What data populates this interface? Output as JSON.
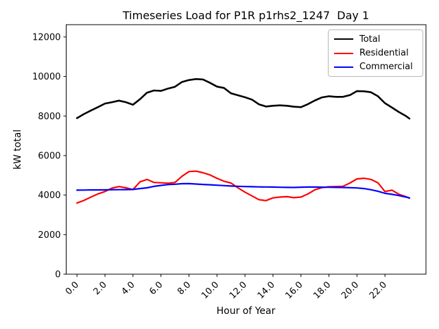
{
  "chart_data": {
    "type": "line",
    "title": "Timeseries Load for P1R p1rhs2_1247  Day 1",
    "xlabel": "Hour of Year",
    "ylabel": "kW total",
    "xlim": [
      -0.77,
      24.93
    ],
    "ylim": [
      0,
      12620
    ],
    "grid": false,
    "legend_position": "upper right",
    "x_ticks": [
      0,
      2,
      4,
      6,
      8,
      10,
      12,
      14,
      16,
      18,
      20,
      22
    ],
    "x_ticklabels": [
      "0.0",
      "2.0",
      "4.0",
      "6.0",
      "8.0",
      "10.0",
      "12.0",
      "14.0",
      "16.0",
      "18.0",
      "20.0",
      "22.0"
    ],
    "x_tick_rotation": 45,
    "y_ticks": [
      0,
      2000,
      4000,
      6000,
      8000,
      10000,
      12000
    ],
    "y_ticklabels": [
      "0",
      "2000",
      "4000",
      "6000",
      "8000",
      "10000",
      "12000"
    ],
    "x": [
      0,
      0.5,
      1,
      1.5,
      2,
      2.5,
      3,
      3.5,
      4,
      4.5,
      5,
      5.5,
      6,
      6.5,
      7,
      7.5,
      8,
      8.5,
      9,
      9.5,
      10,
      10.5,
      11,
      11.5,
      12,
      12.5,
      13,
      13.5,
      14,
      14.5,
      15,
      15.5,
      16,
      16.5,
      17,
      17.5,
      18,
      18.5,
      19,
      19.5,
      20,
      20.5,
      21,
      21.5,
      22,
      22.5,
      23,
      23.5,
      23.75
    ],
    "series": [
      {
        "name": "Total",
        "color": "#000000",
        "values": [
          7890,
          8100,
          8280,
          8450,
          8630,
          8700,
          8780,
          8700,
          8570,
          8850,
          9180,
          9290,
          9270,
          9390,
          9480,
          9720,
          9820,
          9870,
          9850,
          9680,
          9490,
          9420,
          9150,
          9050,
          8950,
          8830,
          8590,
          8480,
          8520,
          8540,
          8520,
          8470,
          8450,
          8600,
          8790,
          8940,
          9000,
          8970,
          8970,
          9060,
          9260,
          9250,
          9200,
          9000,
          8650,
          8430,
          8200,
          8000,
          7870
        ]
      },
      {
        "name": "Residential",
        "color": "#ff0000",
        "values": [
          3600,
          3730,
          3900,
          4060,
          4180,
          4350,
          4430,
          4370,
          4280,
          4670,
          4790,
          4640,
          4620,
          4600,
          4640,
          4950,
          5190,
          5210,
          5130,
          5020,
          4850,
          4700,
          4610,
          4370,
          4150,
          3960,
          3770,
          3720,
          3860,
          3900,
          3920,
          3870,
          3900,
          4060,
          4270,
          4380,
          4420,
          4430,
          4440,
          4610,
          4820,
          4850,
          4790,
          4620,
          4180,
          4250,
          4040,
          3920,
          3840
        ]
      },
      {
        "name": "Commercial",
        "color": "#0000ff",
        "values": [
          4250,
          4255,
          4260,
          4260,
          4265,
          4270,
          4275,
          4280,
          4285,
          4330,
          4370,
          4440,
          4490,
          4530,
          4550,
          4575,
          4580,
          4560,
          4540,
          4520,
          4500,
          4480,
          4460,
          4445,
          4430,
          4425,
          4415,
          4410,
          4405,
          4395,
          4390,
          4385,
          4400,
          4405,
          4405,
          4400,
          4395,
          4390,
          4385,
          4375,
          4360,
          4330,
          4270,
          4190,
          4090,
          4040,
          3975,
          3900,
          3860
        ]
      }
    ]
  }
}
